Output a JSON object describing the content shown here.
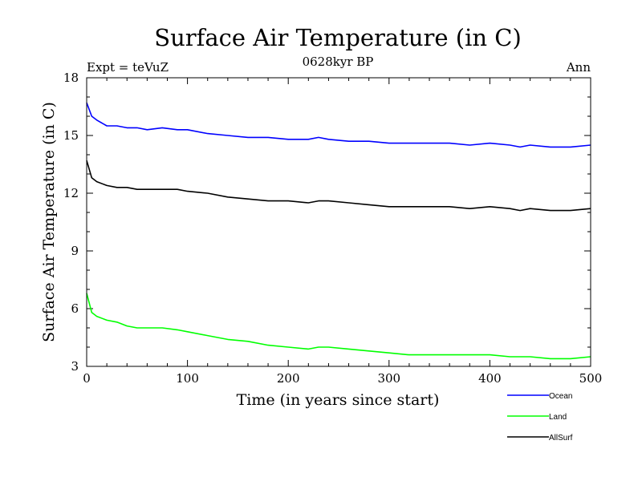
{
  "chart_data": {
    "type": "line",
    "title": "Surface Air Temperature (in C)",
    "subtitle": "0628kyr BP",
    "left_label": "Expt = teVuZ",
    "right_label": "Ann",
    "xlabel": "Time (in years since start)",
    "ylabel": "Surface Air Temperature (in C)",
    "xlim": [
      0,
      500
    ],
    "ylim": [
      3,
      18
    ],
    "xticks": [
      0,
      100,
      200,
      300,
      400,
      500
    ],
    "yticks": [
      3,
      6,
      9,
      12,
      15,
      18
    ],
    "grid": false,
    "legend_position": "bottom-right",
    "series": [
      {
        "name": "Ocean",
        "color": "#0000ff",
        "x": [
          0,
          5,
          10,
          20,
          30,
          40,
          50,
          60,
          75,
          90,
          100,
          120,
          140,
          160,
          180,
          200,
          220,
          230,
          240,
          260,
          280,
          300,
          320,
          340,
          360,
          380,
          400,
          420,
          430,
          440,
          460,
          480,
          500
        ],
        "values": [
          16.7,
          16.0,
          15.8,
          15.5,
          15.5,
          15.4,
          15.4,
          15.3,
          15.4,
          15.3,
          15.3,
          15.1,
          15.0,
          14.9,
          14.9,
          14.8,
          14.8,
          14.9,
          14.8,
          14.7,
          14.7,
          14.6,
          14.6,
          14.6,
          14.6,
          14.5,
          14.6,
          14.5,
          14.4,
          14.5,
          14.4,
          14.4,
          14.5
        ]
      },
      {
        "name": "Land",
        "color": "#00ff00",
        "x": [
          0,
          5,
          10,
          20,
          30,
          40,
          50,
          60,
          75,
          90,
          100,
          120,
          140,
          160,
          180,
          200,
          220,
          230,
          240,
          260,
          280,
          300,
          320,
          340,
          360,
          380,
          400,
          420,
          430,
          440,
          460,
          480,
          500
        ],
        "values": [
          6.8,
          5.8,
          5.6,
          5.4,
          5.3,
          5.1,
          5.0,
          5.0,
          5.0,
          4.9,
          4.8,
          4.6,
          4.4,
          4.3,
          4.1,
          4.0,
          3.9,
          4.0,
          4.0,
          3.9,
          3.8,
          3.7,
          3.6,
          3.6,
          3.6,
          3.6,
          3.6,
          3.5,
          3.5,
          3.5,
          3.4,
          3.4,
          3.5
        ]
      },
      {
        "name": "AllSurf",
        "color": "#000000",
        "x": [
          0,
          5,
          10,
          20,
          30,
          40,
          50,
          60,
          75,
          90,
          100,
          120,
          140,
          160,
          180,
          200,
          220,
          230,
          240,
          260,
          280,
          300,
          320,
          340,
          360,
          380,
          400,
          420,
          430,
          440,
          460,
          480,
          500
        ],
        "values": [
          13.7,
          12.8,
          12.6,
          12.4,
          12.3,
          12.3,
          12.2,
          12.2,
          12.2,
          12.2,
          12.1,
          12.0,
          11.8,
          11.7,
          11.6,
          11.6,
          11.5,
          11.6,
          11.6,
          11.5,
          11.4,
          11.3,
          11.3,
          11.3,
          11.3,
          11.2,
          11.3,
          11.2,
          11.1,
          11.2,
          11.1,
          11.1,
          11.2
        ]
      }
    ]
  }
}
